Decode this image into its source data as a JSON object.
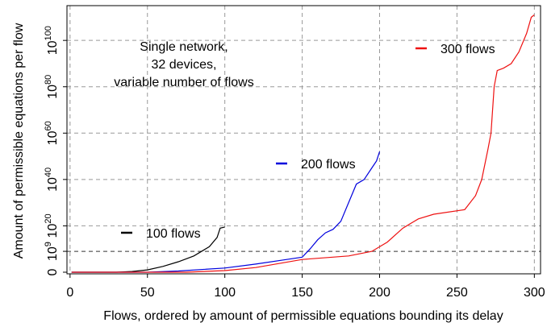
{
  "chart_data": {
    "type": "line",
    "x_label": "Flows, ordered by amount of permissible equations bounding its delay",
    "y_label": "Amount of permissible equations per flow",
    "annotation": [
      "Single network,",
      "32 devices,",
      "variable number of flows"
    ],
    "xlim": [
      -2,
      304
    ],
    "ylim": [
      -0.7,
      115
    ],
    "xticks": [
      0,
      50,
      100,
      150,
      200,
      250,
      300
    ],
    "yticks": [
      0,
      {
        "value": 9,
        "label": "10",
        "sup": "9"
      },
      {
        "value": 20,
        "label": "10",
        "sup": "20"
      },
      {
        "value": 40,
        "label": "10",
        "sup": "40"
      },
      {
        "value": 60,
        "label": "10",
        "sup": "60"
      },
      {
        "value": 80,
        "label": "10",
        "sup": "80"
      },
      {
        "value": 100,
        "label": "10",
        "sup": "100"
      }
    ],
    "grid": true,
    "series": [
      {
        "name": "100 flows",
        "color": "#000000",
        "x": [
          1,
          30,
          40,
          50,
          60,
          70,
          80,
          90,
          95,
          97,
          100
        ],
        "values": [
          0,
          0,
          0.3,
          1,
          2.5,
          4.5,
          7,
          11,
          15,
          19,
          19.5
        ]
      },
      {
        "name": "200 flows",
        "color": "#0000dd",
        "x": [
          1,
          50,
          70,
          100,
          120,
          140,
          150,
          155,
          160,
          165,
          170,
          175,
          180,
          185,
          190,
          195,
          198,
          200
        ],
        "values": [
          0,
          0,
          0.5,
          1.8,
          3.5,
          5.5,
          6.5,
          10,
          14,
          17,
          18.5,
          22,
          30,
          38,
          40,
          45,
          48,
          52
        ]
      },
      {
        "name": "300 flows",
        "color": "#ee1111",
        "x": [
          1,
          75,
          100,
          120,
          150,
          180,
          195,
          205,
          215,
          225,
          235,
          255,
          262,
          266,
          270,
          272,
          274,
          276,
          280,
          285,
          290,
          295,
          298,
          300
        ],
        "values": [
          0,
          0,
          0.7,
          2,
          5.5,
          7,
          9,
          13,
          19,
          23,
          25,
          27,
          33,
          40,
          53,
          60,
          80,
          87,
          88,
          90,
          95,
          103,
          110,
          111
        ]
      }
    ]
  }
}
